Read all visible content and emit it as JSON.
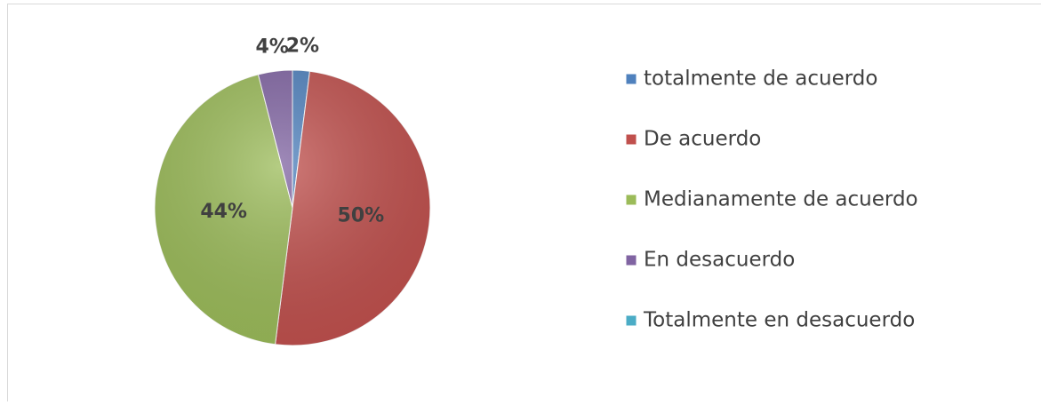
{
  "chart_data": {
    "type": "pie",
    "categories": [
      "totalmente de acuerdo",
      "De acuerdo",
      "Medianamente de acuerdo",
      "En desacuerdo",
      "Totalmente en desacuerdo"
    ],
    "values": [
      2,
      50,
      44,
      4,
      0
    ],
    "value_labels": [
      "2%",
      "50%",
      "44%",
      "4%",
      null
    ],
    "colors": [
      "#4f81bd",
      "#c0504d",
      "#9bbb59",
      "#8064a2",
      "#4bacc6"
    ],
    "legend": "right"
  }
}
